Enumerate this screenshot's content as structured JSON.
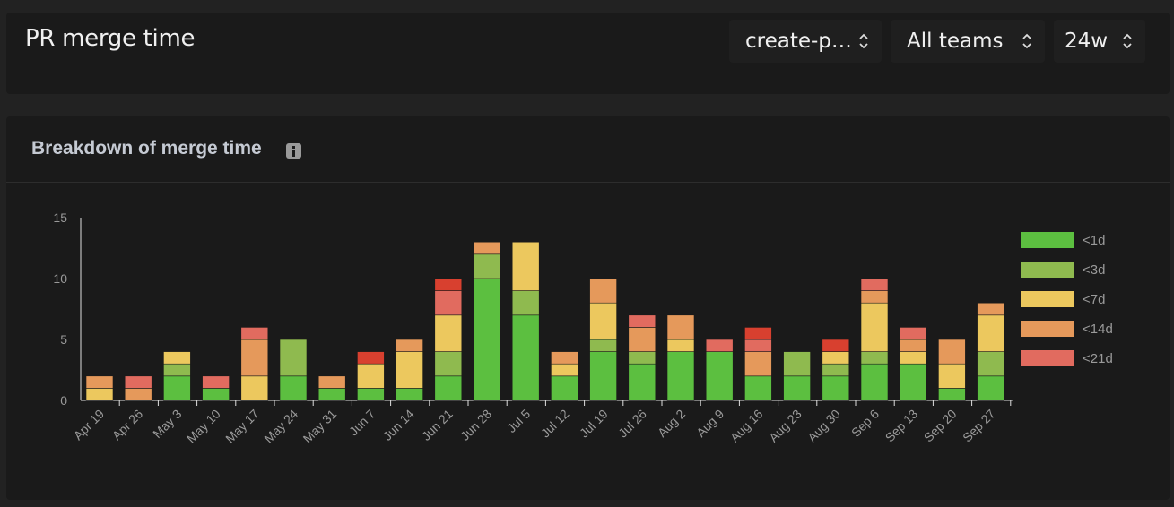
{
  "header": {
    "title": "PR merge time",
    "filters": {
      "repository": "create-p…",
      "team": "All teams",
      "range": "24w"
    }
  },
  "panel": {
    "title": "Breakdown of merge time"
  },
  "colors": {
    "<1d": "#5cbf40",
    "<3d": "#8fba4f",
    "<7d": "#ecc85e",
    "<14d": "#e5995b",
    "<21d": "#e16b5f",
    "top": "#d8402f"
  },
  "chart_data": {
    "type": "bar",
    "stacked": true,
    "categories": [
      "Apr 19",
      "Apr 26",
      "May 3",
      "May 10",
      "May 17",
      "May 24",
      "May 31",
      "Jun 7",
      "Jun 14",
      "Jun 21",
      "Jun 28",
      "Jul 5",
      "Jul 12",
      "Jul 19",
      "Jul 26",
      "Aug 2",
      "Aug 9",
      "Aug 16",
      "Aug 23",
      "Aug 30",
      "Sep 6",
      "Sep 13",
      "Sep 20",
      "Sep 27"
    ],
    "series": [
      {
        "name": "<1d",
        "color": "#5cbf40",
        "values": [
          0,
          0,
          2,
          1,
          0,
          2,
          1,
          1,
          1,
          2,
          10,
          7,
          2,
          4,
          3,
          4,
          4,
          2,
          2,
          2,
          3,
          3,
          1,
          2
        ]
      },
      {
        "name": "<3d",
        "color": "#8fba4f",
        "values": [
          0,
          0,
          1,
          0,
          0,
          3,
          0,
          0,
          0,
          2,
          2,
          2,
          0,
          1,
          1,
          0,
          0,
          0,
          2,
          1,
          1,
          0,
          0,
          2
        ]
      },
      {
        "name": "<7d",
        "color": "#ecc85e",
        "values": [
          1,
          0,
          1,
          0,
          2,
          0,
          0,
          2,
          3,
          3,
          0,
          4,
          1,
          3,
          0,
          1,
          0,
          0,
          0,
          1,
          4,
          1,
          2,
          3
        ]
      },
      {
        "name": "<14d",
        "color": "#e5995b",
        "values": [
          1,
          1,
          0,
          0,
          3,
          0,
          1,
          0,
          1,
          0,
          1,
          0,
          1,
          2,
          2,
          2,
          0,
          2,
          0,
          0,
          1,
          1,
          2,
          1
        ]
      },
      {
        "name": "<21d",
        "color": "#e16b5f",
        "values": [
          0,
          1,
          0,
          1,
          1,
          0,
          0,
          0,
          0,
          2,
          0,
          0,
          0,
          0,
          1,
          0,
          1,
          1,
          0,
          0,
          1,
          1,
          0,
          0
        ]
      },
      {
        "color": "#d8402f",
        "values": [
          0,
          0,
          0,
          0,
          0,
          0,
          0,
          1,
          0,
          1,
          0,
          0,
          0,
          0,
          0,
          0,
          0,
          1,
          0,
          1,
          0,
          0,
          0,
          0
        ]
      }
    ],
    "yticks": [
      0,
      5,
      10,
      15
    ],
    "ylim": [
      0,
      15
    ],
    "legend_position": "right"
  }
}
